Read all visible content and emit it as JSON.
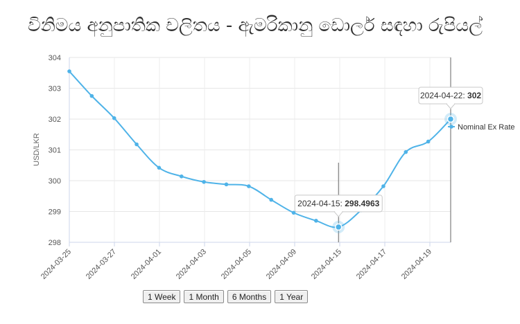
{
  "title": "විනිමය අනුපාතික චලිතය - ඇමරිකානු ඩොලර් සඳහා රුපියල්",
  "chart_data": {
    "type": "line",
    "ylabel": "USD/LKR",
    "ylim": [
      298,
      304
    ],
    "yticks": [
      "298",
      "299",
      "300",
      "301",
      "302",
      "303",
      "304"
    ],
    "xtick_labels": [
      "2024-03-25",
      "2024-03-27",
      "2024-04-01",
      "2024-04-03",
      "2024-04-05",
      "2024-04-09",
      "2024-04-15",
      "2024-04-17",
      "2024-04-19"
    ],
    "grid": true,
    "series": [
      {
        "name": "Nominal Ex Rate",
        "color": "#4fb3e8",
        "values": [
          303.55,
          302.75,
          302.03,
          301.18,
          300.42,
          300.14,
          299.96,
          299.88,
          299.82,
          299.38,
          298.96,
          298.7,
          298.4963,
          299.04,
          299.82,
          300.93,
          301.27,
          302.0
        ]
      }
    ],
    "tooltips": [
      {
        "date": "2024-04-15",
        "value": "298.4963",
        "index": 12
      },
      {
        "date": "2024-04-22",
        "value": "302",
        "index": 17
      }
    ],
    "legend": "right"
  },
  "range_buttons": [
    "1 Week",
    "1 Month",
    "6 Months",
    "1 Year"
  ]
}
